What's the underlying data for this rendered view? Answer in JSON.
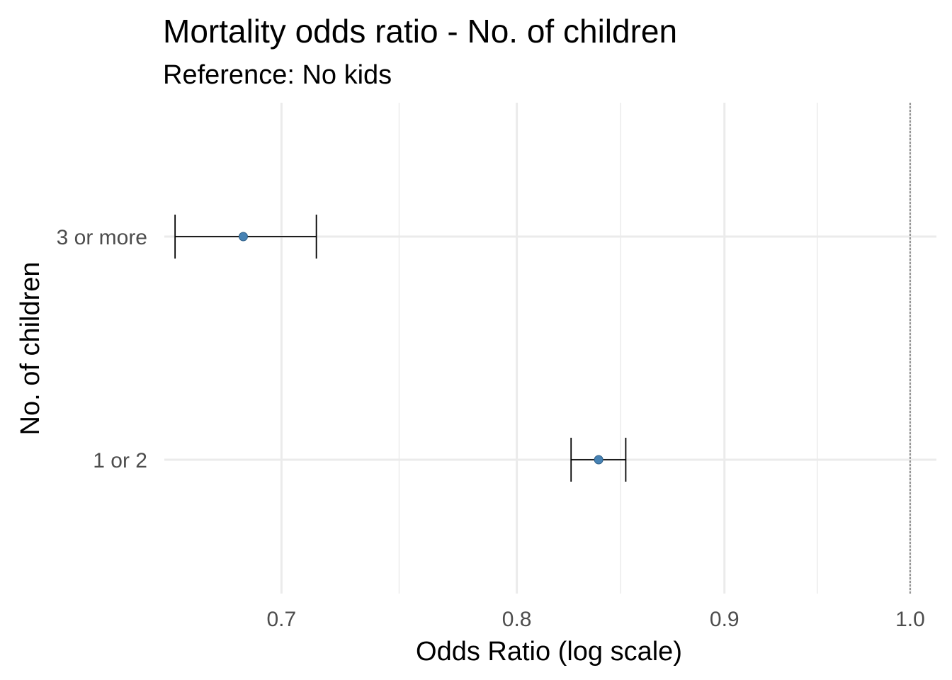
{
  "chart_data": {
    "type": "forest",
    "title": "Mortality odds ratio - No. of children",
    "subtitle": "Reference: No kids",
    "xlabel": "Odds Ratio (log scale)",
    "ylabel": "No. of children",
    "x_scale": "log",
    "xlim": [
      0.655,
      1.015
    ],
    "x_ticks": [
      0.7,
      0.8,
      0.9,
      1.0
    ],
    "x_tick_labels": [
      "0.7",
      "0.8",
      "0.9",
      "1.0"
    ],
    "reference_line": 1.0,
    "categories": [
      "1 or 2",
      "3 or more"
    ],
    "estimates": [
      {
        "label": "1 or 2",
        "or": 0.838,
        "lower": 0.825,
        "upper": 0.851
      },
      {
        "label": "3 or more",
        "or": 0.685,
        "lower": 0.659,
        "upper": 0.714
      }
    ],
    "point_color": "#4682b4",
    "grid": true
  }
}
